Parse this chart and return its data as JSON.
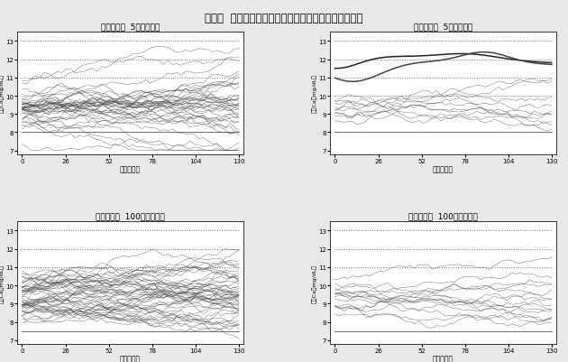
{
  "title": "図－１  リスク別、投与群別、血清カルシウム濃度推移",
  "subplot_titles": [
    "高リスク者  5単位投与群",
    "低リスク者  5単位投与群",
    "高リスク者  100単位投与群",
    "低リスク者  100単位投与群"
  ],
  "xlabel": "時間（週）",
  "ylabel": "血清Ca（mg/dL）",
  "xticks": [
    0,
    26,
    52,
    78,
    104,
    130
  ],
  "yticks": [
    7,
    8,
    9,
    10,
    11,
    12,
    13
  ],
  "ylim": [
    6.8,
    13.5
  ],
  "xlim": [
    -3,
    133
  ],
  "background_color": "#ffffff",
  "panel_bg": "#ffffff",
  "outer_bg": "#e8e8e8",
  "ref_line_color": "#888888",
  "patient_line_color": "#444444",
  "solid_line_color": "#222222"
}
